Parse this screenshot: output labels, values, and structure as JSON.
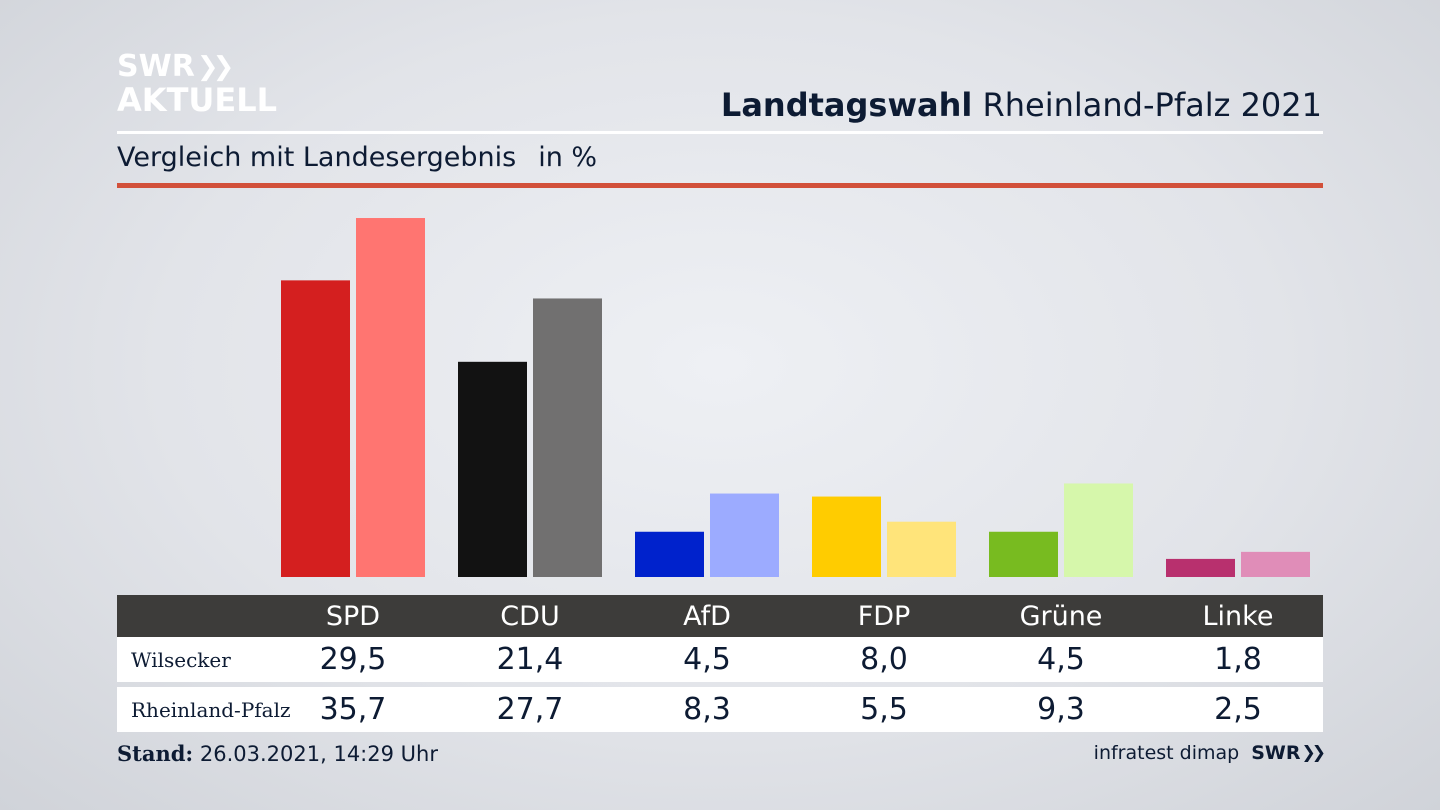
{
  "header": {
    "logo_line1": "SWR",
    "logo_line2": "AKTUELL",
    "title_bold": "Landtagswahl",
    "title_rest": "Rheinland-Pfalz 2021",
    "subtitle": "Vergleich mit Landesergebnis",
    "unit": "in %"
  },
  "chart_data": {
    "type": "bar",
    "categories": [
      "SPD",
      "CDU",
      "AfD",
      "FDP",
      "Grüne",
      "Linke"
    ],
    "series": [
      {
        "name": "Wilsecker",
        "values": [
          29.5,
          21.4,
          4.5,
          8.0,
          4.5,
          1.8
        ]
      },
      {
        "name": "Rheinland-Pfalz",
        "values": [
          35.7,
          27.7,
          8.3,
          5.5,
          9.3,
          2.5
        ]
      }
    ],
    "display_values": [
      [
        "29,5",
        "21,4",
        "4,5",
        "8,0",
        "4,5",
        "1,8"
      ],
      [
        "35,7",
        "27,7",
        "8,3",
        "5,5",
        "9,3",
        "2,5"
      ]
    ],
    "colors": {
      "series1": [
        "#d41f1f",
        "#121212",
        "#0022cc",
        "#ffcc00",
        "#78bb20",
        "#b8306e"
      ],
      "series2": [
        "#ff7571",
        "#717070",
        "#9cabff",
        "#ffe47a",
        "#d6f7ab",
        "#e08db8"
      ]
    },
    "ylim": [
      0,
      36
    ],
    "grid": false,
    "legend": "table-below"
  },
  "footer": {
    "stand_label": "Stand:",
    "stand_value": "26.03.2021, 14:29 Uhr",
    "source": "infratest dimap",
    "brand": "SWR"
  }
}
